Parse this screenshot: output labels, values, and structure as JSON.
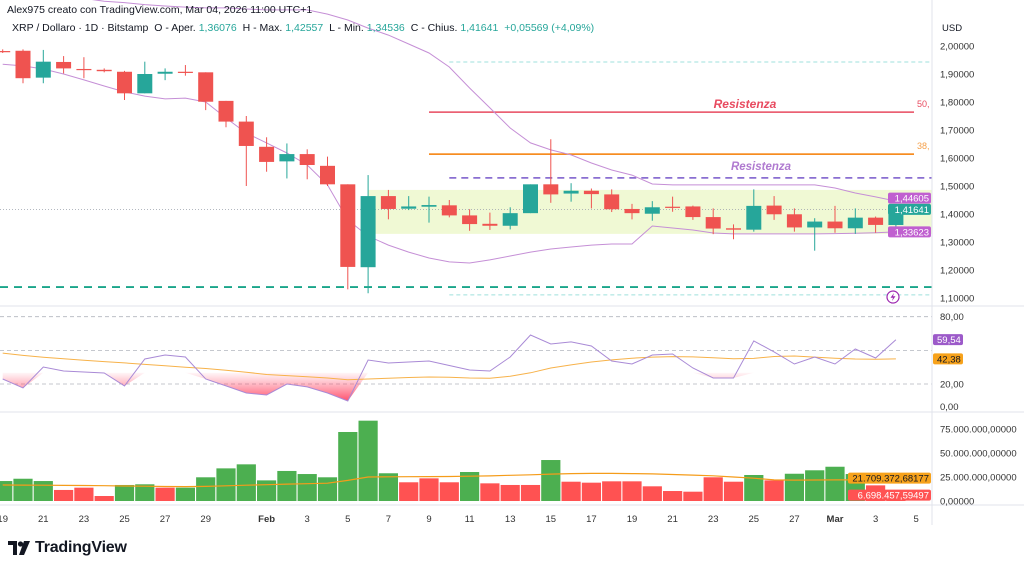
{
  "header": {
    "credit": "Alex975 creato con TradingView.com, Mar 04, 2026 11:00 UTC+1",
    "symbol": "XRP / Dollaro · 1D · Bitstamp",
    "open_label": "O - Aper.",
    "open": "1,36076",
    "high_label": "H - Max.",
    "high": "1,42557",
    "low_label": "L - Min.",
    "low": "1,34536",
    "close_label": "C - Chius.",
    "close": "1,41641",
    "change": "+0,05569 (+4,09%)"
  },
  "logo": {
    "text": "TradingView"
  },
  "colors": {
    "up": "#26a69a",
    "down": "#ef5350",
    "vol_up": "#4caf50",
    "vol_down": "#ff5252",
    "band": "#c58fd6",
    "rsi": "#a98ad6",
    "rsi_ma": "#f7b24a",
    "vol_ma": "#f59c1a",
    "resistance_red": "#e84a5f",
    "resistance_orange": "#f57c00",
    "resistance_purple": "#8a6fd1",
    "support_green": "#1aa58a",
    "zone": "#eef8cf"
  },
  "chart_data": [
    {
      "type": "candlestick",
      "price_axis": {
        "unit": "USD",
        "ylim": [
          1.1,
          2.0
        ],
        "ticks": [
          "2,00000",
          "1,90000",
          "1,80000",
          "1,70000",
          "1,60000",
          "1,50000",
          "1,40000",
          "1,30000",
          "1,20000",
          "1,10000"
        ],
        "tick_values": [
          2.0,
          1.9,
          1.8,
          1.7,
          1.6,
          1.5,
          1.4,
          1.3,
          1.2,
          1.1
        ]
      },
      "x_ticks": [
        {
          "date": "2026-01-19",
          "label": "19"
        },
        {
          "date": "2026-01-21",
          "label": "21"
        },
        {
          "date": "2026-01-23",
          "label": "23"
        },
        {
          "date": "2026-01-25",
          "label": "25"
        },
        {
          "date": "2026-01-27",
          "label": "27"
        },
        {
          "date": "2026-01-29",
          "label": "29"
        },
        {
          "date": "2026-02-01",
          "label": "Feb"
        },
        {
          "date": "2026-02-03",
          "label": "3"
        },
        {
          "date": "2026-02-05",
          "label": "5"
        },
        {
          "date": "2026-02-07",
          "label": "7"
        },
        {
          "date": "2026-02-09",
          "label": "9"
        },
        {
          "date": "2026-02-11",
          "label": "11"
        },
        {
          "date": "2026-02-13",
          "label": "13"
        },
        {
          "date": "2026-02-15",
          "label": "15"
        },
        {
          "date": "2026-02-17",
          "label": "17"
        },
        {
          "date": "2026-02-19",
          "label": "19"
        },
        {
          "date": "2026-02-21",
          "label": "21"
        },
        {
          "date": "2026-02-23",
          "label": "23"
        },
        {
          "date": "2026-02-25",
          "label": "25"
        },
        {
          "date": "2026-02-27",
          "label": "27"
        },
        {
          "date": "2026-03-01",
          "label": "Mar"
        },
        {
          "date": "2026-03-03",
          "label": "3"
        },
        {
          "date": "2026-03-05",
          "label": "5"
        }
      ],
      "dates": [
        "2026-01-19",
        "2026-01-20",
        "2026-01-21",
        "2026-01-22",
        "2026-01-23",
        "2026-01-24",
        "2026-01-25",
        "2026-01-26",
        "2026-01-27",
        "2026-01-28",
        "2026-01-29",
        "2026-01-30",
        "2026-01-31",
        "2026-02-01",
        "2026-02-02",
        "2026-02-03",
        "2026-02-04",
        "2026-02-05",
        "2026-02-06",
        "2026-02-07",
        "2026-02-08",
        "2026-02-09",
        "2026-02-10",
        "2026-02-11",
        "2026-02-12",
        "2026-02-13",
        "2026-02-14",
        "2026-02-15",
        "2026-02-16",
        "2026-02-17",
        "2026-02-18",
        "2026-02-19",
        "2026-02-20",
        "2026-02-21",
        "2026-02-22",
        "2026-02-23",
        "2026-02-24",
        "2026-02-25",
        "2026-02-26",
        "2026-02-27",
        "2026-02-28",
        "2026-03-01",
        "2026-03-02",
        "2026-03-03",
        "2026-03-04"
      ],
      "ohlc": [
        [
          1.982,
          1.988,
          1.975,
          1.978
        ],
        [
          1.983,
          1.988,
          1.867,
          1.885
        ],
        [
          1.887,
          1.986,
          1.867,
          1.944
        ],
        [
          1.943,
          1.964,
          1.902,
          1.92
        ],
        [
          1.918,
          1.96,
          1.885,
          1.916
        ],
        [
          1.915,
          1.92,
          1.906,
          1.91
        ],
        [
          1.908,
          1.911,
          1.807,
          1.831
        ],
        [
          1.831,
          1.944,
          1.831,
          1.9
        ],
        [
          1.901,
          1.92,
          1.878,
          1.908
        ],
        [
          1.908,
          1.932,
          1.894,
          1.906
        ],
        [
          1.906,
          1.906,
          1.771,
          1.801
        ],
        [
          1.804,
          1.804,
          1.71,
          1.73
        ],
        [
          1.73,
          1.75,
          1.5,
          1.643
        ],
        [
          1.64,
          1.674,
          1.551,
          1.586
        ],
        [
          1.588,
          1.652,
          1.527,
          1.614
        ],
        [
          1.614,
          1.631,
          1.524,
          1.575
        ],
        [
          1.572,
          1.605,
          1.5,
          1.506
        ],
        [
          1.506,
          1.506,
          1.131,
          1.211
        ],
        [
          1.21,
          1.539,
          1.117,
          1.464
        ],
        [
          1.464,
          1.486,
          1.381,
          1.418
        ],
        [
          1.419,
          1.464,
          1.414,
          1.427
        ],
        [
          1.426,
          1.462,
          1.369,
          1.432
        ],
        [
          1.431,
          1.45,
          1.388,
          1.395
        ],
        [
          1.395,
          1.417,
          1.34,
          1.364
        ],
        [
          1.365,
          1.405,
          1.343,
          1.358
        ],
        [
          1.358,
          1.424,
          1.345,
          1.403
        ],
        [
          1.403,
          1.506,
          1.403,
          1.506
        ],
        [
          1.506,
          1.667,
          1.44,
          1.47
        ],
        [
          1.473,
          1.51,
          1.444,
          1.483
        ],
        [
          1.483,
          1.491,
          1.42,
          1.471
        ],
        [
          1.47,
          1.488,
          1.407,
          1.417
        ],
        [
          1.418,
          1.436,
          1.381,
          1.403
        ],
        [
          1.401,
          1.446,
          1.376,
          1.424
        ],
        [
          1.426,
          1.462,
          1.408,
          1.425
        ],
        [
          1.427,
          1.43,
          1.379,
          1.389
        ],
        [
          1.389,
          1.42,
          1.328,
          1.348
        ],
        [
          1.349,
          1.363,
          1.31,
          1.344
        ],
        [
          1.344,
          1.488,
          1.337,
          1.429
        ],
        [
          1.43,
          1.464,
          1.379,
          1.399
        ],
        [
          1.399,
          1.42,
          1.337,
          1.352
        ],
        [
          1.352,
          1.385,
          1.269,
          1.373
        ],
        [
          1.373,
          1.429,
          1.333,
          1.349
        ],
        [
          1.349,
          1.42,
          1.329,
          1.387
        ],
        [
          1.387,
          1.391,
          1.333,
          1.361
        ],
        [
          1.36076,
          1.42557,
          1.34536,
          1.41641
        ]
      ],
      "band_upper": [
        2.21,
        2.2,
        2.19,
        2.18,
        2.17,
        2.16,
        2.155,
        2.148,
        2.143,
        2.139,
        2.136,
        2.136,
        2.132,
        2.129,
        2.129,
        2.129,
        2.114,
        2.093,
        2.064,
        2.039,
        2.007,
        1.975,
        1.925,
        1.85,
        1.779,
        1.707,
        1.654,
        1.629,
        1.611,
        1.582,
        1.557,
        1.539,
        1.507,
        1.504,
        1.504,
        1.504,
        1.504,
        1.504,
        1.504,
        1.504,
        1.504,
        1.493,
        1.475,
        1.461,
        1.44605
      ],
      "band_lower": [
        1.935,
        1.929,
        1.918,
        1.9,
        1.879,
        1.857,
        1.836,
        1.821,
        1.811,
        1.814,
        1.8,
        1.743,
        1.689,
        1.654,
        1.618,
        1.575,
        1.504,
        1.379,
        1.321,
        1.289,
        1.264,
        1.243,
        1.229,
        1.225,
        1.236,
        1.25,
        1.264,
        1.275,
        1.282,
        1.289,
        1.293,
        1.293,
        1.357,
        1.35,
        1.343,
        1.332,
        1.329,
        1.329,
        1.329,
        1.329,
        1.329,
        1.33,
        1.331,
        1.333,
        1.33623
      ],
      "last_labels": [
        {
          "value": 1.44605,
          "text": "1,44605",
          "color": "#c060d0"
        },
        {
          "value": 1.41641,
          "text": "1,41641",
          "color": "#26a69a"
        },
        {
          "value": 1.33623,
          "text": "1,33623",
          "color": "#c060d0"
        }
      ],
      "drawings": {
        "resistance_red": {
          "price": 1.764,
          "start": "2026-02-09",
          "label": "Resistenza",
          "edge_label": "50,"
        },
        "resistance_orange": {
          "price": 1.614,
          "start": "2026-02-09",
          "edge_label": "38,"
        },
        "resistance_purple": {
          "price": 1.529,
          "start": "2026-02-10",
          "label": "Resistenza"
        },
        "zone": {
          "top": 1.486,
          "bottom": 1.329,
          "start": "2026-02-06"
        },
        "support_green": {
          "price": 1.139
        },
        "dotted_upper": {
          "price": 1.943,
          "start": "2026-02-10"
        },
        "dotted_lower": {
          "price": 1.111,
          "start": "2026-02-10"
        }
      },
      "alert_icon": "lightning-icon"
    },
    {
      "type": "line",
      "pane": "RSI",
      "ylim": [
        0,
        100
      ],
      "ticks": [
        "80,00",
        "20,00",
        "0,00"
      ],
      "tick_values": [
        80,
        20,
        0
      ],
      "levels": [
        80,
        50,
        20
      ],
      "series": [
        {
          "values": [
            24.5,
            16.5,
            35.2,
            31.6,
            30.7,
            29.8,
            18.3,
            42.3,
            45.9,
            44.1,
            24.5,
            18.3,
            12.0,
            10.2,
            20.0,
            17.4,
            12.0,
            4.9,
            41.4,
            38.7,
            39.6,
            40.5,
            36.5,
            32.5,
            31.6,
            44.1,
            63.7,
            55.7,
            57.5,
            53.9,
            40.5,
            37.8,
            45.9,
            46.8,
            34.3,
            25.4,
            25.4,
            58.4,
            48.6,
            37.8,
            44.1,
            37.8,
            51.2,
            43.2,
            59.54
          ]
        },
        {
          "values": [
            47.6,
            45.5,
            43.8,
            42.5,
            41.2,
            40.0,
            38.8,
            37.5,
            36.2,
            35.0,
            33.8,
            32.3,
            30.5,
            28.5,
            27.5,
            26.5,
            25.4,
            23.8,
            24.5,
            25.2,
            25.8,
            26.3,
            26.0,
            25.4,
            25.2,
            27.0,
            30.0,
            34.3,
            37.0,
            39.6,
            41.5,
            43.0,
            44.0,
            44.4,
            44.2,
            43.5,
            42.6,
            42.8,
            44.5,
            45.0,
            44.0,
            43.0,
            42.3,
            42.0,
            42.38
          ]
        }
      ],
      "last_labels": [
        {
          "text": "59,54",
          "color": "#9c5ac9"
        },
        {
          "text": "42,38",
          "color": "#f7a21b"
        }
      ]
    },
    {
      "type": "bar",
      "pane": "Volume",
      "ticks": [
        "75.000.000,00000",
        "50.000.000,00000",
        "25.000.000,00000",
        "0,00000"
      ],
      "tick_values": [
        75000000,
        50000000,
        25000000,
        0
      ],
      "values": [
        20800000,
        23200000,
        20800000,
        11500000,
        13900000,
        5200000,
        16700000,
        17400000,
        13900000,
        13900000,
        24700000,
        34000000,
        38200000,
        21500000,
        31300000,
        28100000,
        24700000,
        71900000,
        83700000,
        28900000,
        19500000,
        23600000,
        19500000,
        30200000,
        18400000,
        16700000,
        16700000,
        42700000,
        20100000,
        19100000,
        20500000,
        20500000,
        15300000,
        10400000,
        9700000,
        24700000,
        20100000,
        27100000,
        21500000,
        28400000,
        32000000,
        35700000,
        28100000,
        16300000,
        6698457.59497
      ],
      "direction": [
        "up",
        "up",
        "up",
        "down",
        "down",
        "down",
        "up",
        "up",
        "down",
        "up",
        "up",
        "up",
        "up",
        "up",
        "up",
        "up",
        "up",
        "up",
        "up",
        "up",
        "down",
        "down",
        "down",
        "up",
        "down",
        "down",
        "down",
        "up",
        "down",
        "down",
        "down",
        "down",
        "down",
        "down",
        "down",
        "down",
        "down",
        "up",
        "down",
        "up",
        "up",
        "up",
        "up",
        "down",
        "down"
      ],
      "ma": [
        16.7,
        16.6,
        16.5,
        16.3,
        16.1,
        15.9,
        15.6,
        15.4,
        15.1,
        15.0,
        15.2,
        15.8,
        16.5,
        17.0,
        17.6,
        18.0,
        18.5,
        21.5,
        25.0,
        25.2,
        25.3,
        25.4,
        25.5,
        25.8,
        26.2,
        26.8,
        27.3,
        28.0,
        28.6,
        28.8,
        28.8,
        28.6,
        28.2,
        27.6,
        27.0,
        26.3,
        25.0,
        23.8,
        22.0,
        21.8,
        21.9,
        22.0,
        22.0,
        21.9,
        21.709372
      ],
      "ma_unit": "millions",
      "last_labels": [
        {
          "text": "21.709.372,68177",
          "color": "#f7a21b"
        },
        {
          "text": "6.698.457,59497",
          "color": "#ff5252"
        }
      ]
    }
  ]
}
